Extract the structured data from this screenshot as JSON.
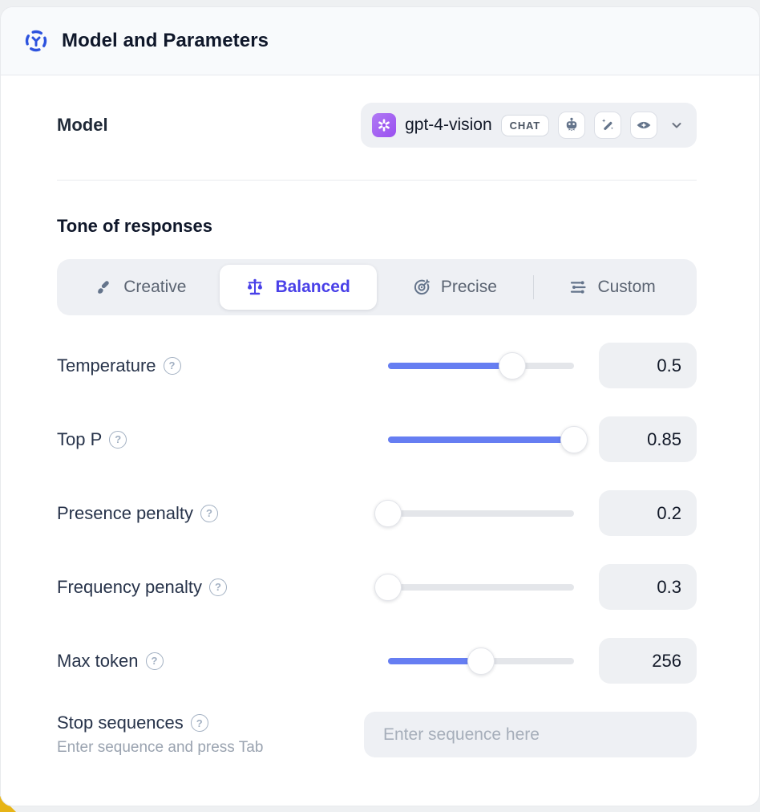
{
  "header": {
    "title": "Model and Parameters"
  },
  "model_row": {
    "label": "Model",
    "selected_model": {
      "name": "gpt-4-vision",
      "provider": "openai",
      "type_badge": "CHAT",
      "capability_icons": [
        "plugin-robot-icon",
        "magic-wand-icon",
        "vision-eye-icon"
      ]
    }
  },
  "tone": {
    "heading": "Tone of responses",
    "tabs": [
      {
        "label": "Creative",
        "icon": "paintbrush-icon",
        "active": false
      },
      {
        "label": "Balanced",
        "icon": "balance-scale-icon",
        "active": true
      },
      {
        "label": "Precise",
        "icon": "target-icon",
        "active": false
      },
      {
        "label": "Custom",
        "icon": "sliders-icon",
        "active": false
      }
    ]
  },
  "parameters": {
    "rows": [
      {
        "label": "Temperature",
        "value": "0.5",
        "slider_percent": 67
      },
      {
        "label": "Top P",
        "value": "0.85",
        "slider_percent": 100
      },
      {
        "label": "Presence penalty",
        "value": "0.2",
        "slider_percent": 0
      },
      {
        "label": "Frequency penalty",
        "value": "0.3",
        "slider_percent": 0
      },
      {
        "label": "Max token",
        "value": "256",
        "slider_percent": 50
      }
    ]
  },
  "stop_sequences": {
    "label": "Stop sequences",
    "hint": "Enter sequence and press Tab",
    "placeholder": "Enter sequence here"
  },
  "colors": {
    "accent_blue": "#2d53de",
    "active_indigo": "#4940e8",
    "slider_blue": "#667ef2",
    "avatar_purple": "#9a4ff0",
    "header_bg": "#f8fafc",
    "control_bg": "#eef0f4"
  }
}
